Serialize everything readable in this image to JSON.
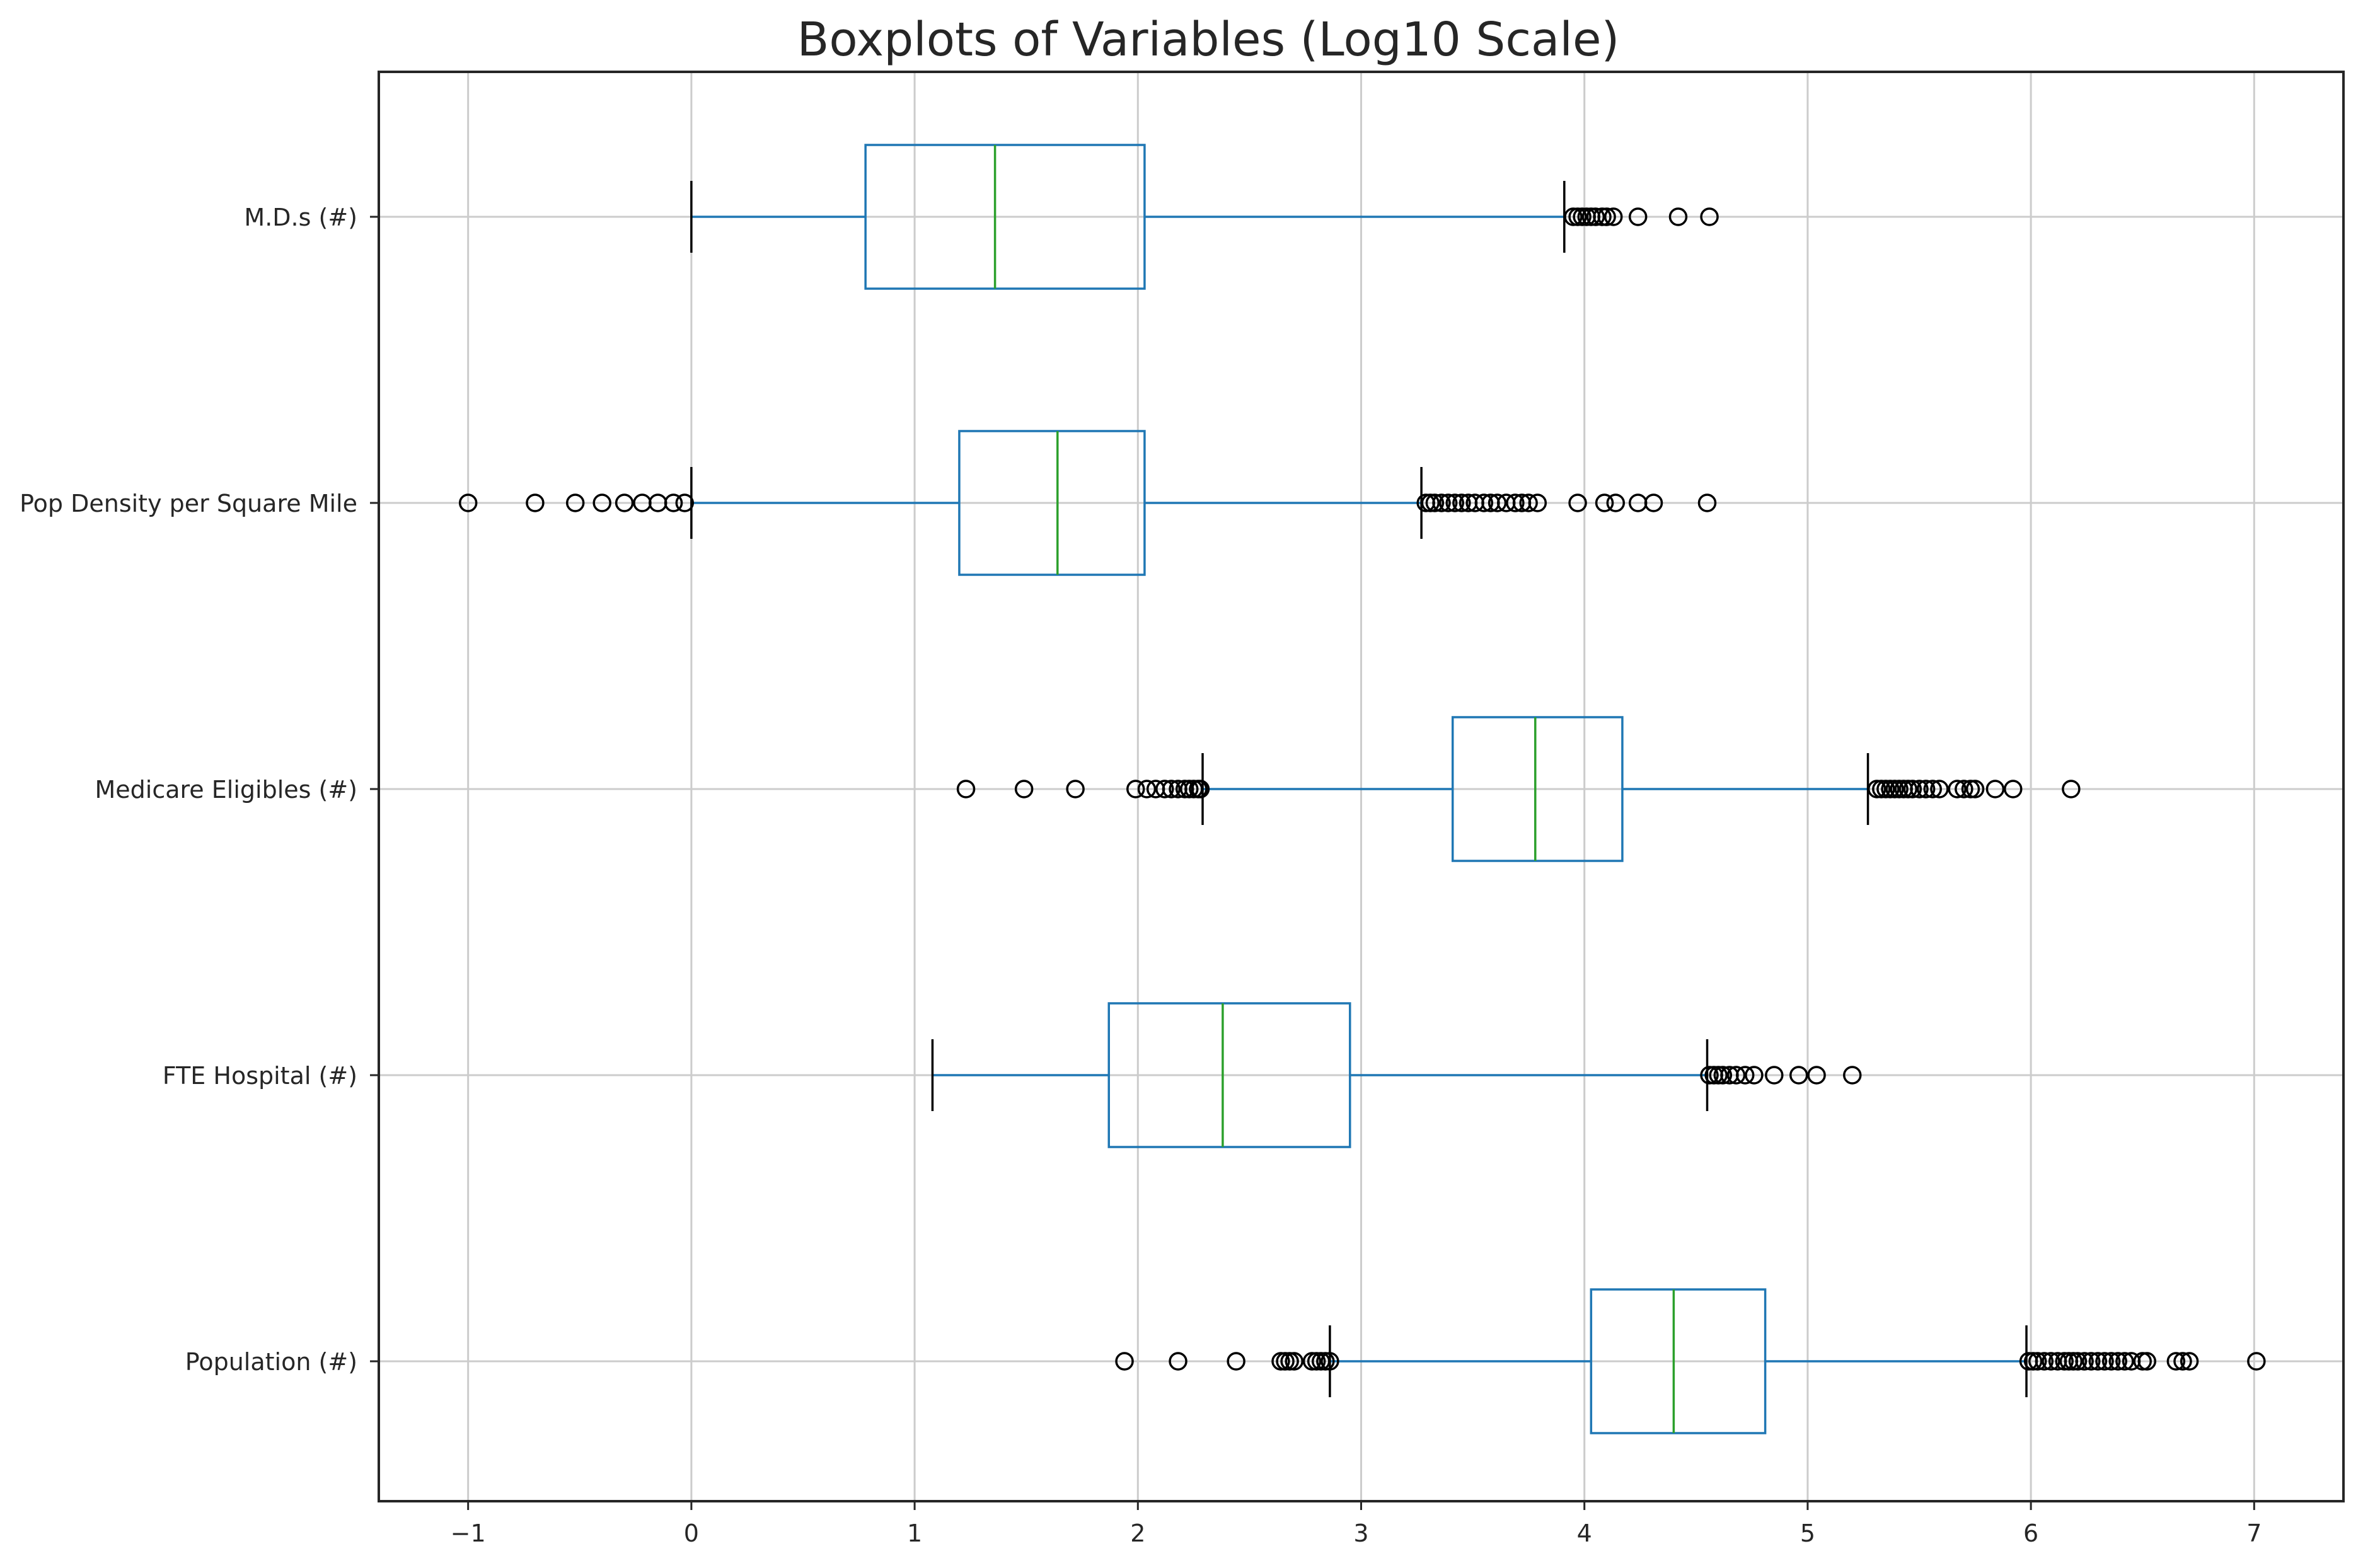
{
  "chart_data": {
    "type": "boxplot",
    "orientation": "horizontal",
    "title": "Boxplots of Variables (Log10 Scale)",
    "xlabel": "",
    "ylabel": "",
    "xlim": [
      -1.4,
      7.4
    ],
    "x_ticks": [
      -1,
      0,
      1,
      2,
      3,
      4,
      5,
      6,
      7
    ],
    "x_tick_labels": [
      "−1",
      "0",
      "1",
      "2",
      "3",
      "4",
      "5",
      "6",
      "7"
    ],
    "grid": true,
    "colors": {
      "box": "#1f77b4",
      "whisker": "#1f77b4",
      "median": "#2ca02c",
      "cap": "#000000",
      "flier": "#000000",
      "grid": "#cccccc",
      "frame": "#262626"
    },
    "series": [
      {
        "name": "Population (#)",
        "whisker_low": 2.86,
        "q1": 4.03,
        "median": 4.4,
        "q3": 4.81,
        "whisker_high": 5.98,
        "outliers": [
          1.94,
          2.18,
          2.44,
          2.64,
          2.66,
          2.68,
          2.7,
          2.78,
          2.8,
          2.82,
          2.84,
          2.86,
          5.99,
          6.01,
          6.03,
          6.06,
          6.09,
          6.12,
          6.15,
          6.17,
          6.19,
          6.21,
          6.24,
          6.27,
          6.3,
          6.33,
          6.36,
          6.39,
          6.42,
          6.45,
          6.5,
          6.52,
          6.65,
          6.68,
          6.71,
          7.01
        ]
      },
      {
        "name": "FTE Hospital (#)",
        "whisker_low": 1.08,
        "q1": 1.87,
        "median": 2.38,
        "q3": 2.95,
        "whisker_high": 4.55,
        "outliers": [
          4.56,
          4.58,
          4.6,
          4.62,
          4.65,
          4.68,
          4.72,
          4.76,
          4.85,
          4.96,
          5.04,
          5.2
        ]
      },
      {
        "name": "Medicare Eligibles (#)",
        "whisker_low": 2.29,
        "q1": 3.41,
        "median": 3.78,
        "q3": 4.17,
        "whisker_high": 5.27,
        "outliers": [
          1.23,
          1.49,
          1.72,
          1.99,
          2.04,
          2.08,
          2.12,
          2.15,
          2.18,
          2.21,
          2.23,
          2.25,
          2.27,
          2.28,
          5.31,
          5.33,
          5.35,
          5.37,
          5.39,
          5.41,
          5.43,
          5.45,
          5.47,
          5.5,
          5.53,
          5.56,
          5.59,
          5.67,
          5.7,
          5.73,
          5.75,
          5.84,
          5.92,
          6.18
        ]
      },
      {
        "name": "Pop Density per Square Mile",
        "whisker_low": 0.0,
        "q1": 1.2,
        "median": 1.64,
        "q3": 2.03,
        "whisker_high": 3.27,
        "outliers": [
          -1.0,
          -0.7,
          -0.52,
          -0.4,
          -0.3,
          -0.22,
          -0.15,
          -0.08,
          -0.03,
          3.29,
          3.31,
          3.33,
          3.36,
          3.39,
          3.42,
          3.45,
          3.48,
          3.51,
          3.55,
          3.58,
          3.61,
          3.65,
          3.69,
          3.72,
          3.75,
          3.79,
          3.97,
          4.09,
          4.14,
          4.24,
          4.31,
          4.55
        ]
      },
      {
        "name": "M.D.s (#)",
        "whisker_low": 0.0,
        "q1": 0.78,
        "median": 1.36,
        "q3": 2.03,
        "whisker_high": 3.91,
        "outliers": [
          3.95,
          3.97,
          3.99,
          4.01,
          4.03,
          4.05,
          4.08,
          4.1,
          4.13,
          4.24,
          4.42,
          4.56
        ]
      }
    ]
  }
}
